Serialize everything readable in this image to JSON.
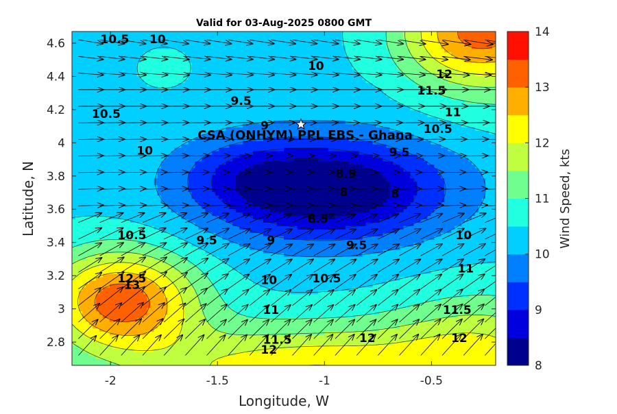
{
  "chart_data": {
    "type": "heatmap",
    "title": "Valid for 03-Aug-2025 0800 GMT",
    "xlabel": "Longitude, W",
    "ylabel": "Latitude, N",
    "colorbar_label": "Wind Speed, kts",
    "xlim": [
      -2.18,
      -0.2
    ],
    "ylim": [
      2.66,
      4.67
    ],
    "x_ticks": [
      -2,
      -1.5,
      -1,
      -0.5
    ],
    "x_tick_labels": [
      "-2",
      "-1.5",
      "-1",
      "-0.5"
    ],
    "y_ticks": [
      2.8,
      3.0,
      3.2,
      3.4,
      3.6,
      3.8,
      4.0,
      4.2,
      4.4,
      4.6
    ],
    "y_tick_labels": [
      "2.8",
      "3",
      "3.2",
      "3.4",
      "3.6",
      "3.8",
      "4",
      "4.2",
      "4.4",
      "4.6"
    ],
    "colorbar": {
      "min": 8,
      "max": 14,
      "levels": [
        8,
        8.5,
        9,
        9.5,
        10,
        10.5,
        11,
        11.5,
        12,
        12.5,
        13,
        13.5,
        14
      ],
      "tick_values": [
        8,
        9,
        10,
        11,
        12,
        13,
        14
      ],
      "tick_labels": [
        "8",
        "9",
        "10",
        "11",
        "12",
        "13",
        "14"
      ],
      "colors": [
        "#00008f",
        "#0000df",
        "#0030ff",
        "#0080ff",
        "#00cfff",
        "#20ffdf",
        "#70ff8f",
        "#bfff40",
        "#ffff00",
        "#ffaf00",
        "#ff6000",
        "#ff1000",
        "#bf0000"
      ]
    },
    "contour_labels": [
      {
        "text": "10.5",
        "lon": -1.98,
        "lat": 4.62
      },
      {
        "text": "10",
        "lon": -1.78,
        "lat": 4.62
      },
      {
        "text": "10",
        "lon": -1.04,
        "lat": 4.46
      },
      {
        "text": "12",
        "lon": -0.44,
        "lat": 4.41
      },
      {
        "text": "11.5",
        "lon": -0.5,
        "lat": 4.31
      },
      {
        "text": "10.5",
        "lon": -2.02,
        "lat": 4.17
      },
      {
        "text": "9.5",
        "lon": -1.39,
        "lat": 4.25
      },
      {
        "text": "11",
        "lon": -0.4,
        "lat": 4.18
      },
      {
        "text": "9",
        "lon": -1.28,
        "lat": 4.1
      },
      {
        "text": "10.5",
        "lon": -0.47,
        "lat": 4.08
      },
      {
        "text": "10",
        "lon": -1.84,
        "lat": 3.95
      },
      {
        "text": "9.5",
        "lon": -0.65,
        "lat": 3.94
      },
      {
        "text": "8.5",
        "lon": -0.9,
        "lat": 3.81
      },
      {
        "text": "8",
        "lon": -0.91,
        "lat": 3.7
      },
      {
        "text": "8",
        "lon": -0.67,
        "lat": 3.69
      },
      {
        "text": "8.5",
        "lon": -1.03,
        "lat": 3.54
      },
      {
        "text": "10.5",
        "lon": -1.9,
        "lat": 3.44
      },
      {
        "text": "9.5",
        "lon": -1.55,
        "lat": 3.41
      },
      {
        "text": "9",
        "lon": -1.25,
        "lat": 3.41
      },
      {
        "text": "9.5",
        "lon": -0.85,
        "lat": 3.38
      },
      {
        "text": "10",
        "lon": -0.35,
        "lat": 3.44
      },
      {
        "text": "12.5",
        "lon": -1.9,
        "lat": 3.18
      },
      {
        "text": "13",
        "lon": -1.9,
        "lat": 3.14
      },
      {
        "text": "10",
        "lon": -1.26,
        "lat": 3.17
      },
      {
        "text": "10.5",
        "lon": -0.99,
        "lat": 3.18
      },
      {
        "text": "11",
        "lon": -0.34,
        "lat": 3.24
      },
      {
        "text": "11",
        "lon": -1.25,
        "lat": 2.99
      },
      {
        "text": "11.5",
        "lon": -0.38,
        "lat": 2.99
      },
      {
        "text": "11.5",
        "lon": -1.22,
        "lat": 2.81
      },
      {
        "text": "12",
        "lon": -0.8,
        "lat": 2.82
      },
      {
        "text": "12",
        "lon": -1.26,
        "lat": 2.75
      },
      {
        "text": "12",
        "lon": -0.37,
        "lat": 2.82
      }
    ],
    "site": {
      "label": "CSA (ONHYM) PPL EBS  - Ghana",
      "lon": -1.11,
      "lat": 4.11
    }
  }
}
